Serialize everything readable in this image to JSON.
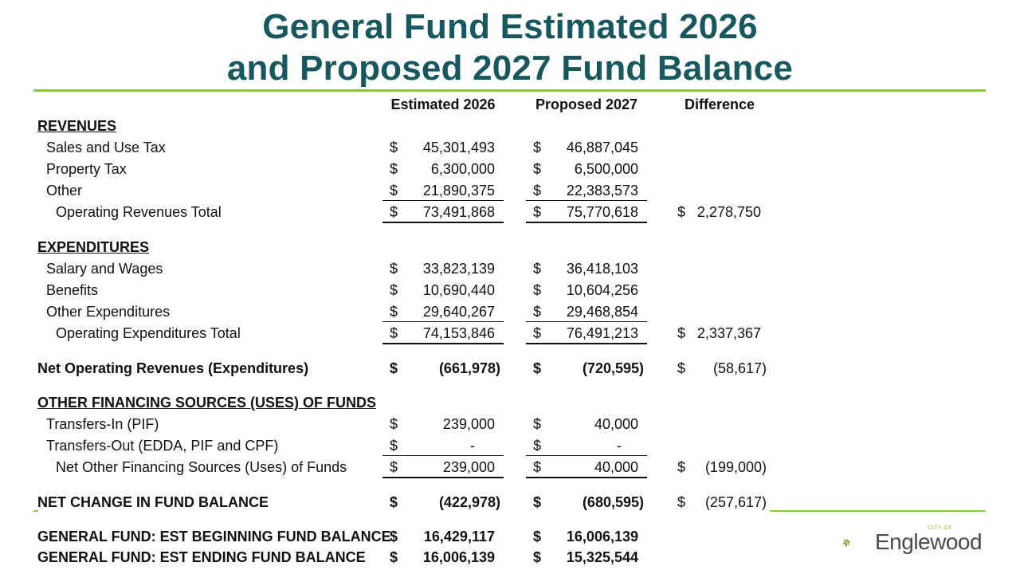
{
  "title": {
    "line1": "General Fund Estimated 2026",
    "line2": "and Proposed 2027 Fund Balance"
  },
  "columns": {
    "est": "Estimated 2026",
    "prop": "Proposed 2027",
    "diff": "Difference"
  },
  "currency": "$",
  "sections": {
    "revenues": "REVENUES",
    "expenditures": "EXPENDITURES",
    "other_financing": "OTHER FINANCING SOURCES (USES) OF FUNDS"
  },
  "rows": {
    "sales_tax": {
      "label": "Sales and Use Tax",
      "est": "45,301,493",
      "prop": "46,887,045"
    },
    "property_tax": {
      "label": "Property Tax",
      "est": "6,300,000",
      "prop": "6,500,000"
    },
    "rev_other": {
      "label": "Other",
      "est": "21,890,375",
      "prop": "22,383,573"
    },
    "rev_total": {
      "label": "Operating Revenues Total",
      "est": "73,491,868",
      "prop": "75,770,618",
      "diff": "2,278,750"
    },
    "salary": {
      "label": "Salary and Wages",
      "est": "33,823,139",
      "prop": "36,418,103"
    },
    "benefits": {
      "label": "Benefits",
      "est": "10,690,440",
      "prop": "10,604,256"
    },
    "exp_other": {
      "label": "Other Expenditures",
      "est": "29,640,267",
      "prop": "29,468,854"
    },
    "exp_total": {
      "label": "Operating Expenditures Total",
      "est": "74,153,846",
      "prop": "76,491,213",
      "diff": "2,337,367"
    },
    "net_operating": {
      "label": "Net Operating Revenues (Expenditures)",
      "est": "(661,978)",
      "prop": "(720,595)",
      "diff": "(58,617)"
    },
    "transfers_in": {
      "label": "Transfers-In (PIF)",
      "est": "239,000",
      "prop": "40,000"
    },
    "transfers_out": {
      "label": "Transfers-Out (EDDA, PIF and CPF)",
      "est": "-",
      "prop": "-"
    },
    "net_other": {
      "label": "Net Other Financing Sources (Uses) of Funds",
      "est": "239,000",
      "prop": "40,000",
      "diff": "(199,000)"
    },
    "net_change": {
      "label": "NET CHANGE IN FUND BALANCE",
      "est": "(422,978)",
      "prop": "(680,595)",
      "diff": "(257,617)"
    },
    "beginning": {
      "label": "GENERAL FUND: EST BEGINNING FUND BALANCE",
      "est": "16,429,117",
      "prop": "16,006,139"
    },
    "ending": {
      "label": "GENERAL FUND: EST ENDING FUND BALANCE",
      "est": "16,006,139",
      "prop": "15,325,544"
    }
  },
  "logo": {
    "name": "Englewood",
    "small": "CITY OF",
    "colors": {
      "green": "#8cc63f",
      "dark_green": "#2e7d32",
      "orange": "#f7941d"
    }
  },
  "colors": {
    "title": "#17585e",
    "accent": "#8cc63f"
  }
}
